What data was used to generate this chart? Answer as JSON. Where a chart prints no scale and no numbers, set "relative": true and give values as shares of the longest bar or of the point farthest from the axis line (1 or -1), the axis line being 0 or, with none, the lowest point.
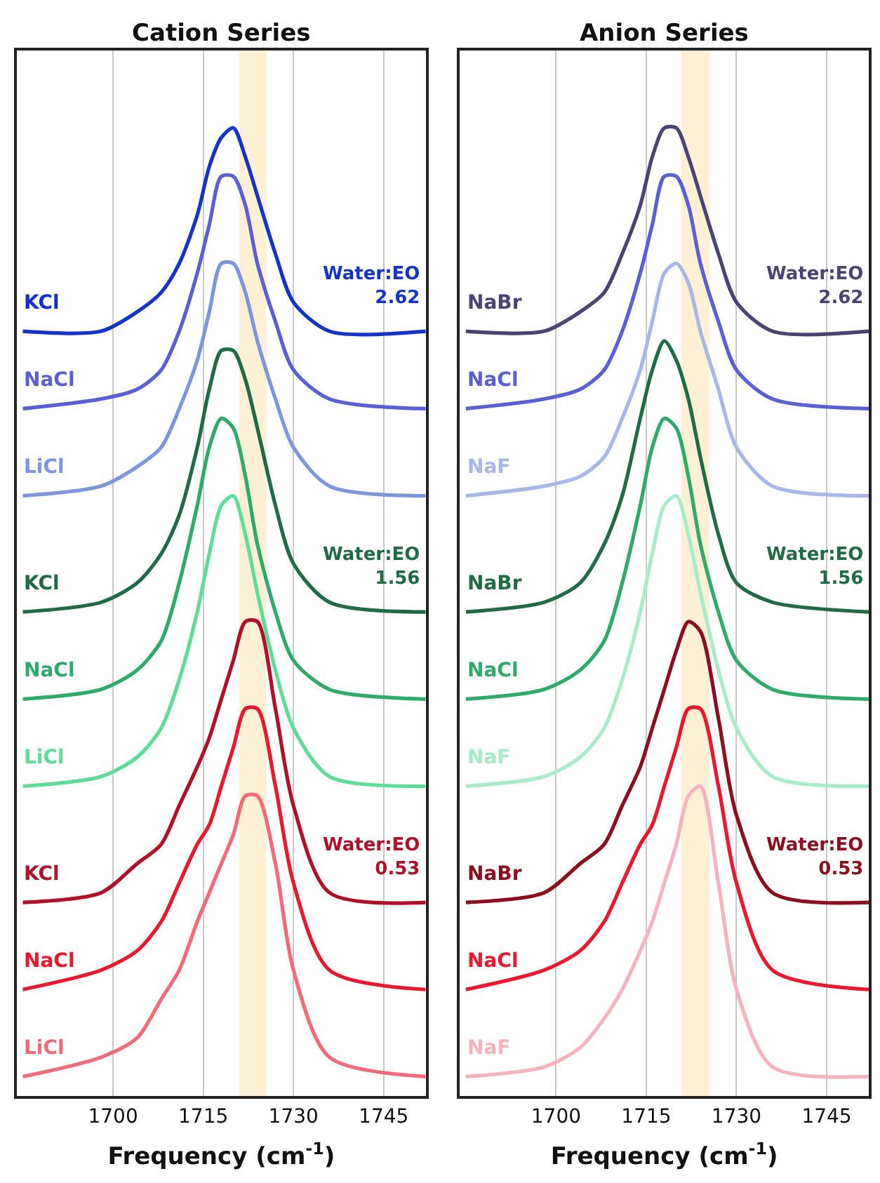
{
  "chart_data": [
    {
      "type": "line",
      "title": "Cation Series",
      "xlabel": "Frequency (cm$^{-1}$)",
      "relative": true,
      "xlim": [
        1684,
        1752
      ],
      "xticks": [
        1700,
        1715,
        1730,
        1745
      ],
      "grid": "x",
      "legend": false,
      "marker": "none",
      "line_style": "solid",
      "x": [
        1685,
        1698,
        1704,
        1708,
        1711,
        1714,
        1716,
        1718,
        1720,
        1722,
        1724,
        1727,
        1730,
        1736,
        1752
      ],
      "bands": [
        {
          "axis": "x",
          "from": 1721,
          "to": 1725.5,
          "color": "#fdf0d5"
        }
      ],
      "annotations": [
        "Water:EO\n2.62",
        "Water:EO\n1.56",
        "Water:EO\n0.53"
      ],
      "series": [
        {
          "name": "KCl",
          "color": "#1434c8",
          "values": [
            0.79,
            0.79,
            0.81,
            0.83,
            0.86,
            0.91,
            0.96,
            0.99,
            1.0,
            0.97,
            0.93,
            0.87,
            0.82,
            0.79,
            0.79
          ]
        },
        {
          "name": "NaCl",
          "color": "#5a5fd6",
          "values": [
            0.71,
            0.72,
            0.73,
            0.75,
            0.79,
            0.85,
            0.9,
            0.95,
            0.95,
            0.92,
            0.86,
            0.8,
            0.75,
            0.72,
            0.71
          ]
        },
        {
          "name": "LiCl",
          "color": "#7d95dc",
          "values": [
            0.62,
            0.63,
            0.65,
            0.67,
            0.71,
            0.76,
            0.81,
            0.86,
            0.86,
            0.83,
            0.78,
            0.72,
            0.67,
            0.63,
            0.62
          ]
        },
        {
          "name": "KCl",
          "color": "#1e6b45",
          "values": [
            0.5,
            0.51,
            0.53,
            0.56,
            0.6,
            0.67,
            0.73,
            0.77,
            0.77,
            0.74,
            0.69,
            0.61,
            0.55,
            0.51,
            0.5
          ]
        },
        {
          "name": "NaCl",
          "color": "#2eaa6a",
          "values": [
            0.41,
            0.42,
            0.44,
            0.47,
            0.53,
            0.61,
            0.67,
            0.7,
            0.69,
            0.64,
            0.57,
            0.5,
            0.45,
            0.42,
            0.41
          ]
        },
        {
          "name": "LiCl",
          "color": "#5fdc99",
          "values": [
            0.32,
            0.33,
            0.35,
            0.38,
            0.43,
            0.5,
            0.56,
            0.61,
            0.62,
            0.58,
            0.52,
            0.44,
            0.38,
            0.33,
            0.32
          ]
        },
        {
          "name": "KCl",
          "color": "#b0102a",
          "values": [
            0.2,
            0.21,
            0.24,
            0.26,
            0.3,
            0.34,
            0.37,
            0.41,
            0.45,
            0.49,
            0.49,
            0.4,
            0.3,
            0.21,
            0.2
          ]
        },
        {
          "name": "NaCl",
          "color": "#e8182e",
          "values": [
            0.11,
            0.13,
            0.15,
            0.18,
            0.22,
            0.26,
            0.28,
            0.32,
            0.36,
            0.4,
            0.4,
            0.32,
            0.22,
            0.13,
            0.11
          ]
        },
        {
          "name": "LiCl",
          "color": "#f06a7a",
          "values": [
            0.02,
            0.04,
            0.06,
            0.1,
            0.13,
            0.18,
            0.21,
            0.24,
            0.27,
            0.31,
            0.31,
            0.24,
            0.13,
            0.04,
            0.02
          ]
        }
      ]
    },
    {
      "type": "line",
      "title": "Anion Series",
      "xlabel": "Frequency (cm$^{-1}$)",
      "relative": true,
      "xlim": [
        1684,
        1752
      ],
      "xticks": [
        1700,
        1715,
        1730,
        1745
      ],
      "grid": "x",
      "legend": false,
      "marker": "none",
      "line_style": "solid",
      "x": [
        1685,
        1698,
        1704,
        1708,
        1711,
        1714,
        1716,
        1718,
        1720,
        1722,
        1724,
        1727,
        1730,
        1736,
        1752
      ],
      "bands": [
        {
          "axis": "x",
          "from": 1720.8,
          "to": 1725.5,
          "color": "#fdf0d5"
        }
      ],
      "annotations": [
        "Water:EO\n2.62",
        "Water:EO\n1.56",
        "Water:EO\n0.53"
      ],
      "series": [
        {
          "name": "NaBr",
          "color": "#4a4475",
          "values": [
            0.79,
            0.79,
            0.81,
            0.83,
            0.87,
            0.92,
            0.97,
            1.0,
            1.0,
            0.97,
            0.93,
            0.87,
            0.82,
            0.79,
            0.79
          ]
        },
        {
          "name": "NaCl",
          "color": "#5a5fd6",
          "values": [
            0.71,
            0.72,
            0.73,
            0.75,
            0.79,
            0.85,
            0.9,
            0.95,
            0.95,
            0.92,
            0.86,
            0.8,
            0.75,
            0.72,
            0.71
          ]
        },
        {
          "name": "NaF",
          "color": "#a9b6e8",
          "values": [
            0.62,
            0.63,
            0.64,
            0.66,
            0.7,
            0.75,
            0.8,
            0.85,
            0.86,
            0.84,
            0.79,
            0.73,
            0.67,
            0.63,
            0.62
          ]
        },
        {
          "name": "NaBr",
          "color": "#1e6b45",
          "values": [
            0.5,
            0.51,
            0.53,
            0.57,
            0.62,
            0.7,
            0.75,
            0.78,
            0.76,
            0.72,
            0.66,
            0.58,
            0.53,
            0.51,
            0.5
          ]
        },
        {
          "name": "NaCl",
          "color": "#2eaa6a",
          "values": [
            0.41,
            0.42,
            0.44,
            0.47,
            0.53,
            0.61,
            0.67,
            0.7,
            0.69,
            0.64,
            0.57,
            0.5,
            0.45,
            0.42,
            0.41
          ]
        },
        {
          "name": "NaF",
          "color": "#a6ecc8",
          "values": [
            0.32,
            0.33,
            0.35,
            0.38,
            0.43,
            0.5,
            0.56,
            0.61,
            0.62,
            0.58,
            0.52,
            0.44,
            0.38,
            0.33,
            0.32
          ]
        },
        {
          "name": "NaBr",
          "color": "#8b0f1f",
          "values": [
            0.2,
            0.21,
            0.24,
            0.26,
            0.3,
            0.34,
            0.38,
            0.42,
            0.46,
            0.49,
            0.48,
            0.39,
            0.29,
            0.21,
            0.2
          ]
        },
        {
          "name": "NaCl",
          "color": "#e8182e",
          "values": [
            0.11,
            0.13,
            0.15,
            0.18,
            0.22,
            0.26,
            0.28,
            0.32,
            0.36,
            0.4,
            0.4,
            0.32,
            0.22,
            0.13,
            0.11
          ]
        },
        {
          "name": "NaF",
          "color": "#f7b3bd",
          "values": [
            0.02,
            0.03,
            0.05,
            0.08,
            0.11,
            0.15,
            0.18,
            0.22,
            0.26,
            0.31,
            0.32,
            0.22,
            0.11,
            0.03,
            0.02
          ]
        }
      ]
    }
  ]
}
